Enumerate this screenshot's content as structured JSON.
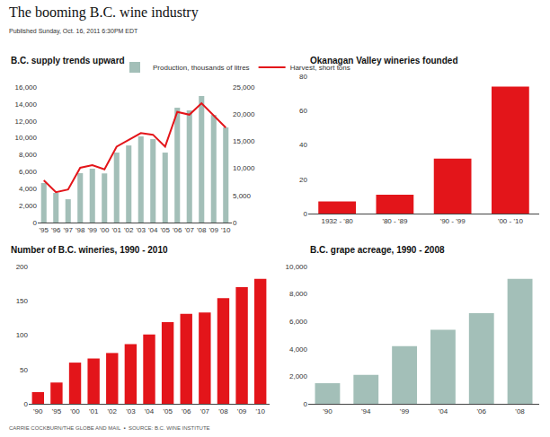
{
  "title": "The booming B.C. wine industry",
  "subtitle": "Published Sunday, Oct. 16, 2011 6:30PM EDT",
  "source": "CARRIE COCKBURN/THE GLOBE AND MAIL  ▪  SOURCE: B.C. WINE INSTITUTE",
  "chart_data": [
    {
      "type": "bar",
      "title": "B.C. supply trends upward",
      "categories": [
        "'95",
        "'96",
        "'97",
        "'98",
        "'99",
        "'00",
        "'01",
        "'02",
        "'03",
        "'04",
        "'05",
        "'06",
        "'07",
        "'08",
        "'09",
        "'10"
      ],
      "series": [
        {
          "name": "Production, thousands of litres",
          "type": "bar",
          "color": "#a3bfb8",
          "values": [
            4660,
            3500,
            2750,
            5830,
            6360,
            5800,
            8260,
            9100,
            10170,
            9850,
            8260,
            13560,
            13240,
            14940,
            12700,
            11230
          ]
        },
        {
          "name": "Harvest, short tons",
          "type": "line",
          "color": "#e3151a",
          "axis": "y2",
          "values": [
            7780,
            5600,
            6100,
            10100,
            10600,
            9800,
            14000,
            15200,
            16500,
            16200,
            14000,
            20400,
            19900,
            22000,
            19700,
            17500
          ]
        }
      ],
      "ylim": [
        0,
        16000
      ],
      "yticks": [
        0,
        {
          "value": 2000,
          "label": "2,000"
        },
        {
          "value": 4000,
          "label": "4,000"
        },
        {
          "value": 6000,
          "label": "6,000"
        },
        {
          "value": 8000,
          "label": "8,000"
        },
        {
          "value": 10000,
          "label": "10,000"
        },
        {
          "value": 12000,
          "label": "12,000"
        },
        {
          "value": 14000,
          "label": "14,000"
        },
        {
          "value": 16000,
          "label": "16,000"
        }
      ],
      "y2lim": [
        0,
        25000
      ],
      "y2ticks": [
        0,
        {
          "value": 5000,
          "label": "5,000"
        },
        {
          "value": 10000,
          "label": "10,000"
        },
        {
          "value": 15000,
          "label": "15,000"
        },
        {
          "value": 20000,
          "label": "20,000"
        },
        {
          "value": 25000,
          "label": "25,000"
        }
      ],
      "grid": false,
      "legend": "top"
    },
    {
      "type": "bar",
      "title": "Okanagan Valley wineries founded",
      "categories": [
        "1932 - '80",
        "'80 - '89",
        "'90 - '99",
        "'00 - '10"
      ],
      "values": [
        7,
        11,
        32,
        74
      ],
      "color": "#e3151a",
      "ylim": [
        0,
        80
      ],
      "yticks": [
        0,
        20,
        40,
        60,
        80
      ],
      "grid": false
    },
    {
      "type": "bar",
      "title": "Number of B.C. wineries, 1990 - 2010",
      "categories": [
        "'90",
        "'95",
        "'00",
        "'01",
        "'02",
        "'03",
        "'04",
        "'05",
        "'06",
        "'07",
        "'08",
        "'09",
        "'10"
      ],
      "values": [
        17,
        31,
        60,
        66,
        74,
        87,
        101,
        119,
        131,
        133,
        154,
        170,
        182
      ],
      "color": "#e3151a",
      "ylim": [
        0,
        200
      ],
      "yticks": [
        0,
        50,
        100,
        150,
        200
      ],
      "grid": false
    },
    {
      "type": "bar",
      "title": "B.C. grape acreage, 1990 - 2008",
      "categories": [
        "'90",
        "'94",
        "'99",
        "'04",
        "'06",
        "'08"
      ],
      "values": [
        1500,
        2100,
        4200,
        5400,
        6600,
        9100
      ],
      "color": "#a3bfb8",
      "ylim": [
        0,
        10000
      ],
      "yticks": [
        0,
        {
          "value": 2000,
          "label": "2,000"
        },
        {
          "value": 4000,
          "label": "4,000"
        },
        {
          "value": 6000,
          "label": "6,000"
        },
        {
          "value": 8000,
          "label": "8,000"
        },
        {
          "value": 10000,
          "label": "10,000"
        }
      ],
      "grid": false
    }
  ]
}
